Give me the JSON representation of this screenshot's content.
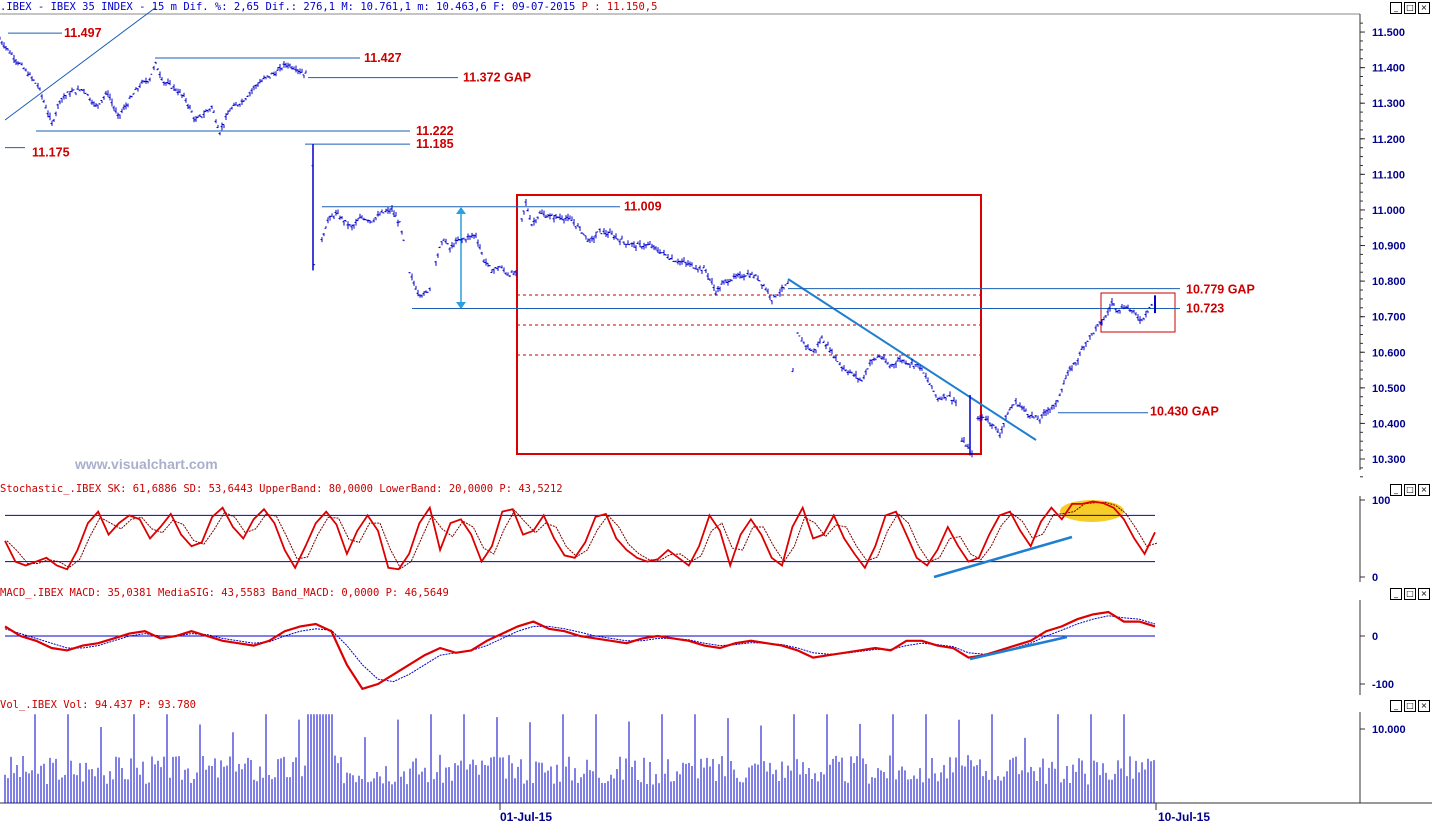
{
  "header": {
    "main": ".IBEX - IBEX 35 INDEX -  15 m Dif. %: 2,65 Dif.: 276,1 M: 10.761,1 m: 10.463,6 F: 09-07-2015",
    "main_p": "P : 11.150,5",
    "stoch": "Stochastic_.IBEX SK: 61,6886 SD: 53,6443 UpperBand: 80,0000 LowerBand: 20,0000 P: 43,5212",
    "macd": "MACD_.IBEX MACD: 35,0381 MediaSIG: 43,5583 Band_MACD: 0,0000 P: 46,5649",
    "vol": "Vol_.IBEX Vol: 94.437 P: 93.780"
  },
  "window_buttons": [
    "_",
    "□",
    "×"
  ],
  "watermark": "www.visualchart.com",
  "colors": {
    "price": "#0000cc",
    "level_line": "#1a5fb4",
    "level_text": "#cc0000",
    "box": "#dd0000",
    "trend": "#1e7fd0",
    "stoch_k": "#dd0000",
    "stoch_d": "#7a0000",
    "macd": "#dd0000",
    "signal": "#0000cc",
    "volume": "#0000cc",
    "highlight": "#f5c400"
  },
  "chart_data": [
    {
      "type": "candlestick",
      "title": ".IBEX - IBEX 35 INDEX - 15 m",
      "ylim": [
        10.25,
        11.55
      ],
      "yticks": [
        "11.500",
        "11.400",
        "11.300",
        "11.200",
        "11.100",
        "11.000",
        "10.900",
        "10.800",
        "10.700",
        "10.600",
        "10.500",
        "10.400",
        "10.300"
      ],
      "x_ticks": [
        "01-Jul-15",
        "10-Jul-15"
      ],
      "price_path": [
        [
          0,
          11.48
        ],
        [
          14,
          11.43
        ],
        [
          26,
          11.39
        ],
        [
          38,
          11.35
        ],
        [
          46,
          11.29
        ],
        [
          52,
          11.24
        ],
        [
          60,
          11.31
        ],
        [
          70,
          11.33
        ],
        [
          84,
          11.34
        ],
        [
          96,
          11.29
        ],
        [
          108,
          11.33
        ],
        [
          118,
          11.26
        ],
        [
          128,
          11.3
        ],
        [
          140,
          11.35
        ],
        [
          150,
          11.37
        ],
        [
          156,
          11.41
        ],
        [
          164,
          11.36
        ],
        [
          176,
          11.34
        ],
        [
          186,
          11.31
        ],
        [
          196,
          11.25
        ],
        [
          204,
          11.27
        ],
        [
          212,
          11.29
        ],
        [
          220,
          11.22
        ],
        [
          230,
          11.28
        ],
        [
          244,
          11.31
        ],
        [
          256,
          11.35
        ],
        [
          266,
          11.37
        ],
        [
          278,
          11.39
        ],
        [
          286,
          11.41
        ],
        [
          296,
          11.4
        ],
        [
          306,
          11.38
        ],
        [
          313,
          11.13
        ],
        [
          315,
          10.84
        ],
        [
          322,
          10.92
        ],
        [
          328,
          10.97
        ],
        [
          336,
          10.99
        ],
        [
          344,
          10.97
        ],
        [
          352,
          10.95
        ],
        [
          362,
          10.98
        ],
        [
          372,
          10.97
        ],
        [
          382,
          10.99
        ],
        [
          392,
          11.0
        ],
        [
          400,
          10.96
        ],
        [
          404,
          10.91
        ],
        [
          410,
          10.82
        ],
        [
          418,
          10.77
        ],
        [
          424,
          10.76
        ],
        [
          430,
          10.78
        ],
        [
          436,
          10.86
        ],
        [
          444,
          10.92
        ],
        [
          450,
          10.89
        ],
        [
          456,
          10.91
        ],
        [
          466,
          10.92
        ],
        [
          476,
          10.93
        ],
        [
          484,
          10.86
        ],
        [
          492,
          10.83
        ],
        [
          500,
          10.84
        ],
        [
          508,
          10.82
        ],
        [
          516,
          10.82
        ],
        [
          522,
          10.97
        ],
        [
          526,
          11.02
        ],
        [
          532,
          10.96
        ],
        [
          540,
          10.99
        ],
        [
          552,
          10.98
        ],
        [
          562,
          10.98
        ],
        [
          572,
          10.97
        ],
        [
          582,
          10.94
        ],
        [
          590,
          10.91
        ],
        [
          600,
          10.94
        ],
        [
          612,
          10.93
        ],
        [
          624,
          10.91
        ],
        [
          636,
          10.9
        ],
        [
          650,
          10.9
        ],
        [
          662,
          10.88
        ],
        [
          674,
          10.86
        ],
        [
          686,
          10.85
        ],
        [
          696,
          10.84
        ],
        [
          706,
          10.83
        ],
        [
          716,
          10.77
        ],
        [
          726,
          10.8
        ],
        [
          736,
          10.81
        ],
        [
          748,
          10.82
        ],
        [
          758,
          10.81
        ],
        [
          766,
          10.78
        ],
        [
          772,
          10.75
        ],
        [
          780,
          10.77
        ],
        [
          788,
          10.79
        ],
        [
          793,
          10.54
        ],
        [
          798,
          10.65
        ],
        [
          806,
          10.62
        ],
        [
          814,
          10.6
        ],
        [
          822,
          10.64
        ],
        [
          832,
          10.6
        ],
        [
          842,
          10.56
        ],
        [
          852,
          10.54
        ],
        [
          862,
          10.52
        ],
        [
          870,
          10.57
        ],
        [
          880,
          10.59
        ],
        [
          890,
          10.56
        ],
        [
          900,
          10.58
        ],
        [
          910,
          10.57
        ],
        [
          920,
          10.56
        ],
        [
          930,
          10.51
        ],
        [
          938,
          10.47
        ],
        [
          948,
          10.48
        ],
        [
          956,
          10.46
        ],
        [
          962,
          10.35
        ],
        [
          966,
          10.34
        ],
        [
          972,
          10.32
        ],
        [
          978,
          10.41
        ],
        [
          984,
          10.42
        ],
        [
          992,
          10.4
        ],
        [
          1000,
          10.37
        ],
        [
          1008,
          10.43
        ],
        [
          1016,
          10.46
        ],
        [
          1024,
          10.44
        ],
        [
          1032,
          10.42
        ],
        [
          1040,
          10.41
        ],
        [
          1048,
          10.44
        ],
        [
          1056,
          10.45
        ],
        [
          1062,
          10.5
        ],
        [
          1070,
          10.55
        ],
        [
          1078,
          10.58
        ],
        [
          1084,
          10.62
        ],
        [
          1092,
          10.65
        ],
        [
          1100,
          10.68
        ],
        [
          1106,
          10.7
        ],
        [
          1112,
          10.74
        ],
        [
          1118,
          10.72
        ],
        [
          1126,
          10.73
        ],
        [
          1134,
          10.71
        ],
        [
          1142,
          10.69
        ],
        [
          1148,
          10.72
        ],
        [
          1154,
          10.74
        ]
      ],
      "levels": [
        {
          "label": "11.497",
          "value": 11.497
        },
        {
          "label": "11.427",
          "value": 11.427
        },
        {
          "label": "11.372 GAP",
          "value": 11.372
        },
        {
          "label": "11.222",
          "value": 11.222
        },
        {
          "label": "11.185",
          "value": 11.185
        },
        {
          "label": "11.175",
          "value": 11.175
        },
        {
          "label": "11.009",
          "value": 11.009
        },
        {
          "label": "10.779 GAP",
          "value": 10.779
        },
        {
          "label": "10.723",
          "value": 10.723
        },
        {
          "label": "10.430 GAP",
          "value": 10.43
        }
      ]
    },
    {
      "type": "line",
      "title": "Stochastic_.IBEX",
      "ylim": [
        0,
        100
      ],
      "yticks": [
        "100",
        "0"
      ],
      "bands": [
        80,
        20
      ],
      "series": [
        {
          "name": "SK",
          "values": [
            47,
            20,
            15,
            20,
            25,
            15,
            10,
            35,
            70,
            85,
            55,
            70,
            80,
            75,
            50,
            65,
            82,
            55,
            40,
            45,
            78,
            90,
            65,
            50,
            75,
            88,
            70,
            35,
            12,
            40,
            70,
            85,
            68,
            30,
            60,
            80,
            60,
            12,
            10,
            30,
            70,
            90,
            35,
            70,
            75,
            55,
            20,
            40,
            85,
            88,
            55,
            60,
            80,
            50,
            28,
            25,
            45,
            78,
            82,
            50,
            35,
            25,
            20,
            23,
            35,
            25,
            15,
            40,
            80,
            60,
            15,
            55,
            75,
            55,
            25,
            15,
            65,
            90,
            50,
            55,
            80,
            50,
            30,
            12,
            40,
            80,
            85,
            55,
            25,
            15,
            35,
            65,
            40,
            20,
            25,
            55,
            80,
            85,
            60,
            40,
            72,
            90,
            75,
            95,
            95,
            98,
            96,
            90,
            75,
            50,
            30,
            58
          ]
        }
      ]
    },
    {
      "type": "line",
      "title": "MACD_.IBEX",
      "ylim": [
        -120,
        70
      ],
      "yticks": [
        "0",
        "-100"
      ],
      "series": [
        {
          "name": "MACD",
          "values": [
            20,
            0,
            -10,
            -25,
            -30,
            -20,
            -15,
            -5,
            5,
            10,
            -5,
            0,
            10,
            0,
            -10,
            -15,
            -20,
            -10,
            10,
            20,
            25,
            10,
            -60,
            -110,
            -100,
            -80,
            -60,
            -40,
            -25,
            -35,
            -30,
            -10,
            5,
            20,
            30,
            15,
            10,
            0,
            -5,
            -10,
            -15,
            -5,
            0,
            -5,
            -10,
            -20,
            -25,
            -15,
            -10,
            -15,
            -20,
            -30,
            -45,
            -40,
            -35,
            -30,
            -25,
            -30,
            -10,
            -10,
            -20,
            -25,
            -45,
            -40,
            -30,
            -20,
            -10,
            10,
            20,
            35,
            45,
            50,
            30,
            30,
            20
          ]
        },
        {
          "name": "MediaSIG",
          "values": [
            15,
            5,
            -5,
            -15,
            -25,
            -25,
            -20,
            -10,
            0,
            5,
            0,
            0,
            5,
            3,
            -5,
            -10,
            -15,
            -12,
            0,
            10,
            15,
            12,
            -20,
            -60,
            -90,
            -95,
            -80,
            -60,
            -40,
            -35,
            -30,
            -20,
            -5,
            10,
            20,
            20,
            15,
            8,
            0,
            -5,
            -10,
            -10,
            -5,
            -5,
            -8,
            -15,
            -20,
            -18,
            -14,
            -15,
            -18,
            -25,
            -35,
            -38,
            -36,
            -32,
            -28,
            -28,
            -20,
            -15,
            -18,
            -22,
            -35,
            -38,
            -34,
            -25,
            -15,
            0,
            12,
            25,
            35,
            42,
            38,
            35,
            25
          ]
        }
      ]
    },
    {
      "type": "bar",
      "title": "Vol_.IBEX",
      "ylim": [
        0,
        12000
      ],
      "yticks": [
        "10.000"
      ]
    }
  ]
}
